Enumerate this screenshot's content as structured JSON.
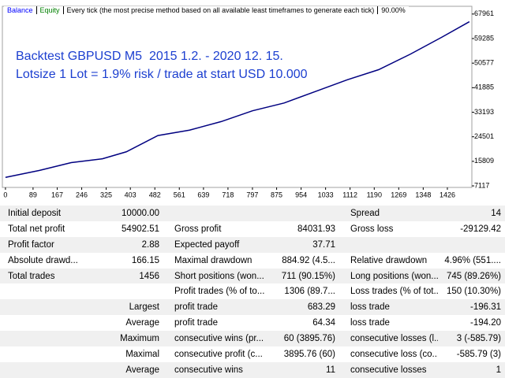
{
  "chart_data": {
    "type": "line",
    "header_items": [
      "Equity",
      "Every tick (the most precise method based on all available least timeframes to generate each tick)",
      "90.00%"
    ],
    "annotations": [
      "Backtest GBPUSD M5  2015 1.2. - 2020 12. 15.",
      "Lotsize 1 Lot = 1.9% risk / trade at start USD 10.000"
    ],
    "x": [
      0,
      110,
      212,
      313,
      390,
      492,
      594,
      696,
      797,
      899,
      1001,
      1103,
      1204,
      1306,
      1408,
      1497
    ],
    "series": [
      {
        "name": "Balance",
        "color": "#000080",
        "values": [
          10130,
          12600,
          15340,
          16710,
          19180,
          24940,
          26860,
          29880,
          33710,
          36460,
          40570,
          44680,
          48250,
          53730,
          59760,
          65240
        ]
      }
    ],
    "xlim": [
      -10,
      1505
    ],
    "xticks": [
      0,
      89,
      167,
      246,
      325,
      403,
      482,
      561,
      639,
      718,
      797,
      875,
      954,
      1033,
      1112,
      1190,
      1269,
      1348,
      1426
    ],
    "ylim": [
      6570,
      70700
    ],
    "yticks": [
      7117,
      15809,
      24501,
      33193,
      41885,
      50577,
      59285,
      67961
    ]
  },
  "table": {
    "rows": [
      [
        "Initial deposit",
        "10000.00",
        null,
        null,
        "Spread",
        "14"
      ],
      [
        "Total net profit",
        "54902.51",
        "Gross profit",
        "84031.93",
        "Gross loss",
        "-29129.42"
      ],
      [
        "Profit factor",
        "2.88",
        "Expected payoff",
        "37.71",
        null,
        null
      ],
      [
        "Absolute drawd...",
        "166.15",
        "Maximal drawdown",
        "884.92 (4.5...",
        "Relative drawdown",
        "4.96% (551...."
      ],
      [
        "Total trades",
        "1456",
        "Short positions (won...",
        "711 (90.15%)",
        "Long positions (won...",
        "745 (89.26%)"
      ],
      [
        null,
        null,
        "Profit trades (% of to...",
        "1306 (89.7...",
        "Loss trades (% of tot...",
        "150 (10.30%)"
      ],
      [
        null,
        "Largest",
        "profit trade",
        "683.29",
        "loss trade",
        "-196.31"
      ],
      [
        null,
        "Average",
        "profit trade",
        "64.34",
        "loss trade",
        "-194.20"
      ],
      [
        null,
        "Maximum",
        "consecutive wins (pr...",
        "60 (3895.76)",
        "consecutive losses (l...",
        "3 (-585.79)"
      ],
      [
        null,
        "Maximal",
        "consecutive profit (c...",
        "3895.76 (60)",
        "consecutive loss (co...",
        "-585.79 (3)"
      ],
      [
        null,
        "Average",
        "consecutive wins",
        "11",
        "consecutive losses",
        "1"
      ]
    ]
  }
}
